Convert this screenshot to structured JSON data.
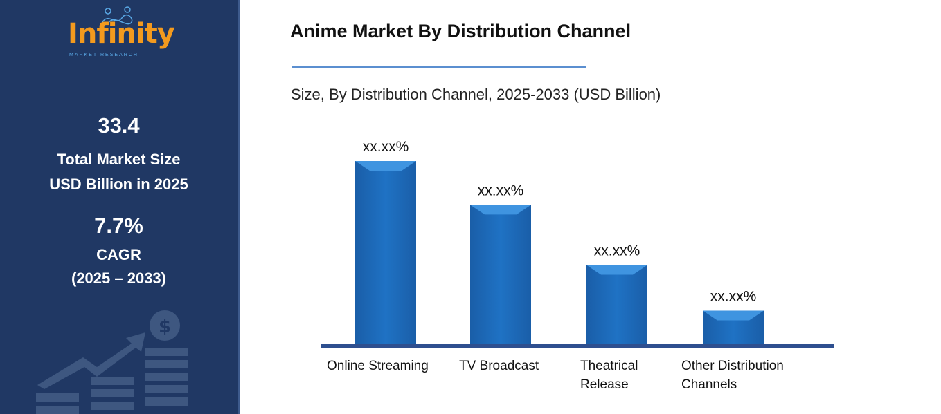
{
  "sidebar": {
    "logo": {
      "word": "Infinity",
      "sub": "MARKET RESEARCH"
    },
    "market_size": "33.4",
    "market_size_label_1": "Total Market Size",
    "market_size_label_2": "USD Billion in 2025",
    "cagr": "7.7%",
    "cagr_label": "CAGR",
    "cagr_period": "(2025 – 2033)"
  },
  "chart_data": {
    "type": "bar",
    "title": "Anime Market By Distribution Channel",
    "subtitle": "Size, By Distribution Channel, 2025-2033 (USD Billion)",
    "categories": [
      "Online Streaming",
      "TV Broadcast",
      "Theatrical Release",
      "Other Distribution Channels"
    ],
    "category_lines": [
      [
        "Online Streaming"
      ],
      [
        "TV Broadcast"
      ],
      [
        "Theatrical",
        "Release"
      ],
      [
        "Other Distribution",
        "Channels"
      ]
    ],
    "relative_values": [
      100,
      76,
      43,
      18
    ],
    "data_labels": [
      "xx.xx%",
      "xx.xx%",
      "xx.xx%",
      "xx.xx%"
    ],
    "bar_color": "#1f6fc0",
    "baseline_color": "#2e4f8f",
    "grid": false,
    "y_axis_shown": false
  }
}
